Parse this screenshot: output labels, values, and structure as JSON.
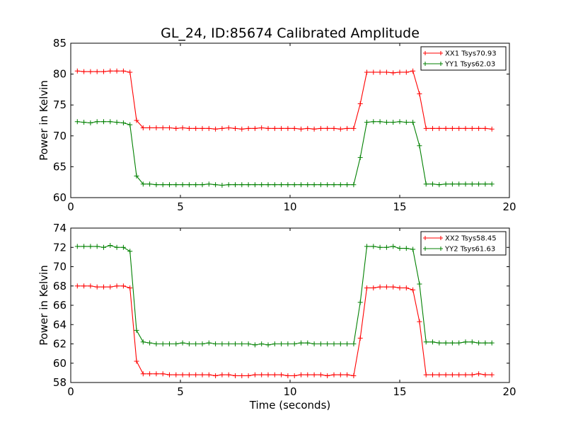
{
  "chart_data": [
    {
      "type": "line",
      "title": "GL_24, ID:85674 Calibrated Amplitude",
      "xlabel": "",
      "ylabel": "Power in Kelvin",
      "xlim": [
        0,
        20
      ],
      "ylim": [
        60,
        85
      ],
      "xticks": [
        0,
        5,
        10,
        15,
        20
      ],
      "yticks": [
        60,
        65,
        70,
        75,
        80,
        85
      ],
      "grid": false,
      "legend_position": "top-right",
      "marker": "plus",
      "x": [
        0.3,
        0.6,
        0.9,
        1.2,
        1.5,
        1.8,
        2.1,
        2.4,
        2.7,
        3.0,
        3.3,
        3.6,
        3.9,
        4.2,
        4.5,
        4.8,
        5.1,
        5.4,
        5.7,
        6.0,
        6.3,
        6.6,
        6.9,
        7.2,
        7.5,
        7.8,
        8.1,
        8.4,
        8.7,
        9.0,
        9.3,
        9.6,
        9.9,
        10.2,
        10.5,
        10.8,
        11.1,
        11.4,
        11.7,
        12.0,
        12.3,
        12.6,
        12.9,
        13.2,
        13.5,
        13.8,
        14.1,
        14.4,
        14.7,
        15.0,
        15.3,
        15.6,
        15.9,
        16.2,
        16.5,
        16.8,
        17.1,
        17.4,
        17.7,
        18.0,
        18.3,
        18.6,
        18.9,
        19.2
      ],
      "series": [
        {
          "name": "XX1 Tsys70.93",
          "color": "#ff0000",
          "values": [
            80.5,
            80.4,
            80.4,
            80.4,
            80.4,
            80.5,
            80.5,
            80.5,
            80.3,
            72.5,
            71.3,
            71.3,
            71.3,
            71.3,
            71.3,
            71.2,
            71.3,
            71.2,
            71.2,
            71.2,
            71.2,
            71.1,
            71.2,
            71.3,
            71.2,
            71.1,
            71.2,
            71.2,
            71.3,
            71.2,
            71.2,
            71.2,
            71.2,
            71.2,
            71.1,
            71.2,
            71.1,
            71.2,
            71.2,
            71.2,
            71.1,
            71.2,
            71.2,
            75.2,
            80.3,
            80.3,
            80.3,
            80.3,
            80.2,
            80.3,
            80.3,
            80.5,
            76.8,
            71.2,
            71.2,
            71.2,
            71.2,
            71.2,
            71.2,
            71.2,
            71.2,
            71.2,
            71.2,
            71.1
          ]
        },
        {
          "name": "YY1 Tsys62.03",
          "color": "#008000",
          "values": [
            72.3,
            72.2,
            72.1,
            72.3,
            72.3,
            72.3,
            72.2,
            72.1,
            71.8,
            63.5,
            62.2,
            62.2,
            62.1,
            62.1,
            62.1,
            62.1,
            62.1,
            62.1,
            62.1,
            62.1,
            62.2,
            62.1,
            62.0,
            62.1,
            62.1,
            62.1,
            62.1,
            62.1,
            62.1,
            62.1,
            62.1,
            62.1,
            62.1,
            62.1,
            62.1,
            62.1,
            62.1,
            62.1,
            62.1,
            62.1,
            62.1,
            62.1,
            62.1,
            66.5,
            72.2,
            72.3,
            72.3,
            72.2,
            72.2,
            72.3,
            72.2,
            72.2,
            68.4,
            62.2,
            62.2,
            62.1,
            62.2,
            62.2,
            62.2,
            62.2,
            62.2,
            62.2,
            62.2,
            62.2
          ]
        }
      ]
    },
    {
      "type": "line",
      "title": "",
      "xlabel": "Time (seconds)",
      "ylabel": "Power in Kelvin",
      "xlim": [
        0,
        20
      ],
      "ylim": [
        58,
        74
      ],
      "xticks": [
        0,
        5,
        10,
        15,
        20
      ],
      "yticks": [
        58,
        60,
        62,
        64,
        66,
        68,
        70,
        72,
        74
      ],
      "grid": false,
      "legend_position": "top-right",
      "marker": "plus",
      "x": [
        0.3,
        0.6,
        0.9,
        1.2,
        1.5,
        1.8,
        2.1,
        2.4,
        2.7,
        3.0,
        3.3,
        3.6,
        3.9,
        4.2,
        4.5,
        4.8,
        5.1,
        5.4,
        5.7,
        6.0,
        6.3,
        6.6,
        6.9,
        7.2,
        7.5,
        7.8,
        8.1,
        8.4,
        8.7,
        9.0,
        9.3,
        9.6,
        9.9,
        10.2,
        10.5,
        10.8,
        11.1,
        11.4,
        11.7,
        12.0,
        12.3,
        12.6,
        12.9,
        13.2,
        13.5,
        13.8,
        14.1,
        14.4,
        14.7,
        15.0,
        15.3,
        15.6,
        15.9,
        16.2,
        16.5,
        16.8,
        17.1,
        17.4,
        17.7,
        18.0,
        18.3,
        18.6,
        18.9,
        19.2
      ],
      "series": [
        {
          "name": "XX2 Tsys58.45",
          "color": "#ff0000",
          "values": [
            68.0,
            68.0,
            68.0,
            67.9,
            67.9,
            67.9,
            68.0,
            68.0,
            67.8,
            60.2,
            58.9,
            58.9,
            58.9,
            58.9,
            58.8,
            58.8,
            58.8,
            58.8,
            58.8,
            58.8,
            58.8,
            58.7,
            58.8,
            58.8,
            58.7,
            58.7,
            58.7,
            58.8,
            58.8,
            58.8,
            58.8,
            58.8,
            58.7,
            58.7,
            58.8,
            58.8,
            58.8,
            58.8,
            58.7,
            58.8,
            58.8,
            58.8,
            58.7,
            62.6,
            67.8,
            67.8,
            67.9,
            67.9,
            67.9,
            67.8,
            67.8,
            67.6,
            64.3,
            58.8,
            58.8,
            58.8,
            58.8,
            58.8,
            58.8,
            58.8,
            58.8,
            58.9,
            58.8,
            58.8
          ]
        },
        {
          "name": "YY2 Tsys61.63",
          "color": "#008000",
          "values": [
            72.1,
            72.1,
            72.1,
            72.1,
            72.0,
            72.2,
            72.0,
            72.0,
            71.6,
            63.4,
            62.2,
            62.1,
            62.0,
            62.0,
            62.0,
            62.0,
            62.1,
            62.0,
            62.0,
            62.0,
            62.1,
            62.0,
            62.0,
            62.0,
            62.0,
            62.0,
            62.0,
            61.9,
            62.0,
            61.9,
            62.0,
            62.0,
            62.0,
            62.0,
            62.1,
            62.1,
            62.0,
            62.0,
            62.0,
            62.0,
            62.0,
            62.0,
            62.0,
            66.3,
            72.1,
            72.1,
            72.0,
            72.0,
            72.1,
            71.9,
            71.9,
            71.8,
            68.2,
            62.2,
            62.2,
            62.1,
            62.1,
            62.1,
            62.1,
            62.2,
            62.2,
            62.1,
            62.1,
            62.1
          ]
        }
      ]
    }
  ]
}
